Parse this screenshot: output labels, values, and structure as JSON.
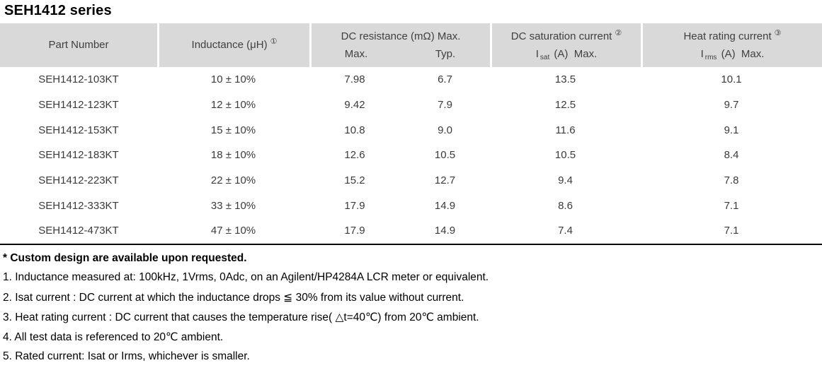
{
  "page": {
    "title": "SEH1412 series"
  },
  "colors": {
    "header_bg": "#d9d9d9",
    "header_text": "#404040",
    "body_text": "#3a3a3a",
    "notes_text": "#000000",
    "table_border": "#000000",
    "page_bg": "#ffffff"
  },
  "table": {
    "header": {
      "part_number": "Part Number",
      "inductance": "Inductance (μH)",
      "inductance_note": "①",
      "dc_resistance": "DC resistance (mΩ) Max.",
      "dcr_max": "Max.",
      "dcr_typ": "Typ.",
      "dc_saturation": "DC saturation current",
      "dc_saturation_note": "②",
      "isat_symbol": "I",
      "isat_sub": "sat",
      "isat_unit": "(A)  Max.",
      "heat_rating": "Heat rating current",
      "heat_rating_note": "③",
      "irms_symbol": "I",
      "irms_sub": "rms",
      "irms_unit": "(A)  Max."
    },
    "rows": [
      {
        "part": "SEH1412-103KT",
        "inductance": "10 ± 10%",
        "dcr_max": "7.98",
        "dcr_typ": "6.7",
        "isat": "13.5",
        "irms": "10.1"
      },
      {
        "part": "SEH1412-123KT",
        "inductance": "12 ± 10%",
        "dcr_max": "9.42",
        "dcr_typ": "7.9",
        "isat": "12.5",
        "irms": "9.7"
      },
      {
        "part": "SEH1412-153KT",
        "inductance": "15 ± 10%",
        "dcr_max": "10.8",
        "dcr_typ": "9.0",
        "isat": "11.6",
        "irms": "9.1"
      },
      {
        "part": "SEH1412-183KT",
        "inductance": "18 ± 10%",
        "dcr_max": "12.6",
        "dcr_typ": "10.5",
        "isat": "10.5",
        "irms": "8.4"
      },
      {
        "part": "SEH1412-223KT",
        "inductance": "22 ± 10%",
        "dcr_max": "15.2",
        "dcr_typ": "12.7",
        "isat": "9.4",
        "irms": "7.8"
      },
      {
        "part": "SEH1412-333KT",
        "inductance": "33 ± 10%",
        "dcr_max": "17.9",
        "dcr_typ": "14.9",
        "isat": "8.6",
        "irms": "7.1"
      },
      {
        "part": "SEH1412-473KT",
        "inductance": "47 ± 10%",
        "dcr_max": "17.9",
        "dcr_typ": "14.9",
        "isat": "7.4",
        "irms": "7.1"
      }
    ]
  },
  "notes": {
    "custom": "* Custom design are available upon requested.",
    "items": [
      "1. Inductance measured at: 100kHz, 1Vrms, 0Adc, on an Agilent/HP4284A LCR meter or equivalent.",
      "2. Isat current : DC current at which the inductance drops ≦ 30% from its value without current.",
      "3. Heat rating current : DC current that causes the temperature rise( △t=40℃) from 20℃ ambient.",
      "4. All test data is referenced to 20℃ ambient.",
      "5. Rated current: Isat or Irms, whichever is smaller."
    ]
  }
}
